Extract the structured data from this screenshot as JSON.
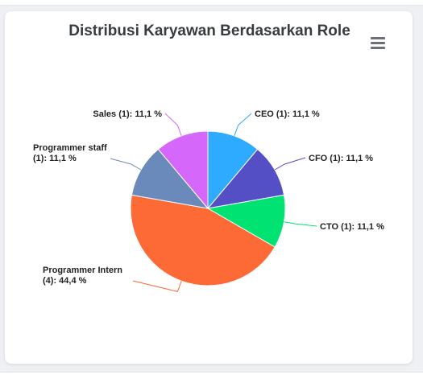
{
  "chart_data": {
    "type": "pie",
    "title": "Distribusi Karyawan Berdasarkan Role",
    "slices": [
      {
        "name": "CEO",
        "count": 1,
        "percent": "11,1 %",
        "color": "#2eaaff",
        "label": [
          "CEO (1): 11,1 %"
        ]
      },
      {
        "name": "CFO",
        "count": 1,
        "percent": "11,1 %",
        "color": "#544fc5",
        "label": [
          "CFO (1): 11,1 %"
        ]
      },
      {
        "name": "CTO",
        "count": 1,
        "percent": "11,1 %",
        "color": "#00e272",
        "label": [
          "CTO (1): 11,1 %"
        ]
      },
      {
        "name": "Programmer Intern",
        "count": 4,
        "percent": "44,4 %",
        "color": "#fe6a35",
        "label": [
          "Programmer Intern",
          "(4): 44,4 %"
        ]
      },
      {
        "name": "Programmer staff",
        "count": 1,
        "percent": "11,1 %",
        "color": "#6b8abc",
        "label": [
          "Programmer staff",
          "(1): 11,1 %"
        ]
      },
      {
        "name": "Sales",
        "count": 1,
        "percent": "11,1 %",
        "color": "#d568fb",
        "label": [
          "Sales (1): 11,1 %"
        ]
      }
    ]
  },
  "toolbar": {
    "menu_icon": "hamburger-menu-icon"
  }
}
